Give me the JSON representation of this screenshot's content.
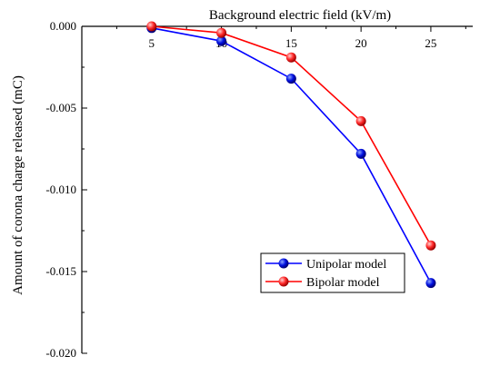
{
  "chart_data": {
    "type": "line",
    "xlabel": "Background electric field (kV/m)",
    "ylabel": "Amount of corona charge released (mC)",
    "x": [
      5,
      10,
      15,
      20,
      25
    ],
    "xticks": [
      "5",
      "10",
      "15",
      "20",
      "25"
    ],
    "xlim": [
      0,
      28
    ],
    "ylim": [
      -0.02,
      0.0
    ],
    "yticks": [
      "0.000",
      "-0.005",
      "-0.010",
      "-0.015",
      "-0.020"
    ],
    "grid": false,
    "legend_position": "lower-right",
    "series": [
      {
        "name": "Unipolar model",
        "color": "#0000ff",
        "marker": "blue-sphere",
        "values": [
          -0.0001,
          -0.0009,
          -0.0032,
          -0.0078,
          -0.0157
        ]
      },
      {
        "name": "Bipolar model",
        "color": "#ff0000",
        "marker": "red-sphere",
        "values": [
          0.0,
          -0.0004,
          -0.0019,
          -0.0058,
          -0.0134
        ]
      }
    ]
  }
}
